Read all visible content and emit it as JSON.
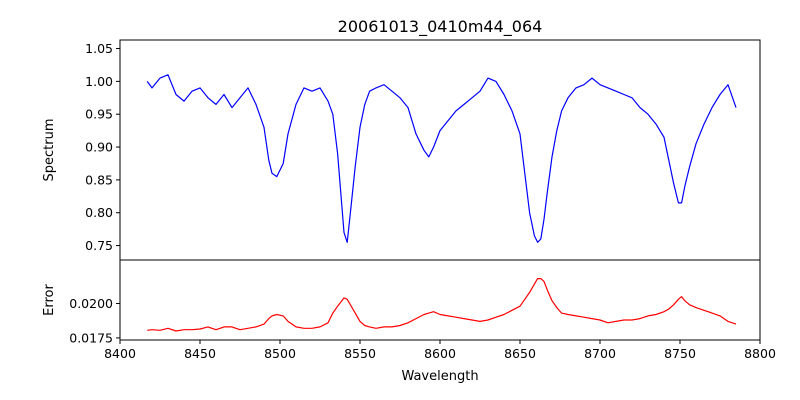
{
  "chart_data": [
    {
      "type": "line",
      "title": "20061013_0410m44_064",
      "xlabel": "",
      "ylabel": "Spectrum",
      "xlim": [
        8400,
        8800
      ],
      "ylim": [
        0.728,
        1.063
      ],
      "yticks": [
        0.75,
        0.8,
        0.85,
        0.9,
        0.95,
        1.0,
        1.05
      ],
      "ytick_labels": [
        "0.75",
        "0.80",
        "0.85",
        "0.90",
        "0.95",
        "1.00",
        "1.05"
      ],
      "grid": false,
      "series": [
        {
          "color": "#0000ff",
          "x": [
            8417,
            8420,
            8425,
            8430,
            8435,
            8440,
            8445,
            8450,
            8455,
            8460,
            8465,
            8470,
            8475,
            8480,
            8485,
            8490,
            8493,
            8495,
            8498,
            8502,
            8505,
            8510,
            8515,
            8520,
            8525,
            8530,
            8533,
            8536,
            8538,
            8540,
            8542,
            8544,
            8547,
            8550,
            8553,
            8556,
            8560,
            8565,
            8570,
            8575,
            8580,
            8585,
            8590,
            8593,
            8596,
            8600,
            8605,
            8610,
            8615,
            8620,
            8625,
            8630,
            8635,
            8640,
            8645,
            8650,
            8653,
            8656,
            8659,
            8661,
            8663,
            8665,
            8667,
            8670,
            8673,
            8676,
            8680,
            8685,
            8690,
            8695,
            8700,
            8705,
            8710,
            8715,
            8720,
            8725,
            8730,
            8735,
            8740,
            8743,
            8746,
            8749,
            8751,
            8753,
            8756,
            8760,
            8765,
            8770,
            8775,
            8780,
            8785
          ],
          "y": [
            1.0,
            0.99,
            1.005,
            1.01,
            0.98,
            0.97,
            0.985,
            0.99,
            0.975,
            0.965,
            0.98,
            0.96,
            0.975,
            0.99,
            0.965,
            0.93,
            0.88,
            0.86,
            0.855,
            0.875,
            0.92,
            0.965,
            0.99,
            0.985,
            0.99,
            0.97,
            0.95,
            0.89,
            0.83,
            0.77,
            0.755,
            0.8,
            0.87,
            0.93,
            0.965,
            0.985,
            0.99,
            0.995,
            0.985,
            0.975,
            0.96,
            0.92,
            0.895,
            0.885,
            0.9,
            0.925,
            0.94,
            0.955,
            0.965,
            0.975,
            0.985,
            1.005,
            1.0,
            0.98,
            0.955,
            0.92,
            0.86,
            0.8,
            0.765,
            0.755,
            0.76,
            0.79,
            0.83,
            0.885,
            0.925,
            0.955,
            0.975,
            0.99,
            0.995,
            1.005,
            0.995,
            0.99,
            0.985,
            0.98,
            0.975,
            0.96,
            0.95,
            0.935,
            0.915,
            0.88,
            0.845,
            0.815,
            0.815,
            0.84,
            0.87,
            0.905,
            0.935,
            0.96,
            0.98,
            0.995,
            0.96
          ]
        }
      ]
    },
    {
      "type": "line",
      "title": "",
      "xlabel": "Wavelength",
      "ylabel": "Error",
      "xlim": [
        8400,
        8800
      ],
      "ylim": [
        0.01735,
        0.02315
      ],
      "yticks": [
        0.0175,
        0.02
      ],
      "ytick_labels": [
        "0.0175",
        "0.0200"
      ],
      "xticks": [
        8400,
        8450,
        8500,
        8550,
        8600,
        8650,
        8700,
        8750,
        8800
      ],
      "xtick_labels": [
        "8400",
        "8450",
        "8500",
        "8550",
        "8600",
        "8650",
        "8700",
        "8750",
        "8800"
      ],
      "grid": false,
      "series": [
        {
          "color": "#ff0000",
          "x": [
            8417,
            8420,
            8425,
            8430,
            8435,
            8440,
            8445,
            8450,
            8455,
            8460,
            8465,
            8470,
            8475,
            8480,
            8485,
            8490,
            8493,
            8495,
            8498,
            8502,
            8505,
            8510,
            8515,
            8520,
            8525,
            8530,
            8533,
            8536,
            8538,
            8540,
            8542,
            8544,
            8547,
            8550,
            8553,
            8556,
            8560,
            8565,
            8570,
            8575,
            8580,
            8585,
            8590,
            8593,
            8596,
            8600,
            8605,
            8610,
            8615,
            8620,
            8625,
            8630,
            8635,
            8640,
            8645,
            8650,
            8653,
            8656,
            8659,
            8661,
            8663,
            8665,
            8667,
            8670,
            8673,
            8676,
            8680,
            8685,
            8690,
            8695,
            8700,
            8705,
            8710,
            8715,
            8720,
            8725,
            8730,
            8735,
            8740,
            8743,
            8746,
            8749,
            8751,
            8753,
            8756,
            8760,
            8765,
            8770,
            8775,
            8780,
            8785
          ],
          "y": [
            0.01805,
            0.0181,
            0.01805,
            0.0182,
            0.018,
            0.0181,
            0.0181,
            0.01815,
            0.0183,
            0.0181,
            0.0183,
            0.0183,
            0.0181,
            0.0182,
            0.0183,
            0.0185,
            0.0189,
            0.0191,
            0.0192,
            0.0191,
            0.0187,
            0.0183,
            0.0182,
            0.0182,
            0.0183,
            0.0186,
            0.0193,
            0.0198,
            0.0201,
            0.0204,
            0.0203,
            0.0199,
            0.0193,
            0.0187,
            0.0184,
            0.0183,
            0.0182,
            0.0183,
            0.0183,
            0.0184,
            0.0186,
            0.0189,
            0.0192,
            0.0193,
            0.0194,
            0.0192,
            0.0191,
            0.019,
            0.0189,
            0.0188,
            0.0187,
            0.0188,
            0.019,
            0.0192,
            0.0195,
            0.0198,
            0.0203,
            0.0208,
            0.0214,
            0.0218,
            0.0218,
            0.0216,
            0.021,
            0.0202,
            0.0197,
            0.0193,
            0.0192,
            0.0191,
            0.019,
            0.0189,
            0.0188,
            0.0186,
            0.0187,
            0.0188,
            0.0188,
            0.0189,
            0.0191,
            0.0192,
            0.0194,
            0.0196,
            0.0199,
            0.0203,
            0.0205,
            0.0202,
            0.0199,
            0.0197,
            0.0195,
            0.0193,
            0.0191,
            0.0187,
            0.0185
          ]
        }
      ]
    }
  ]
}
